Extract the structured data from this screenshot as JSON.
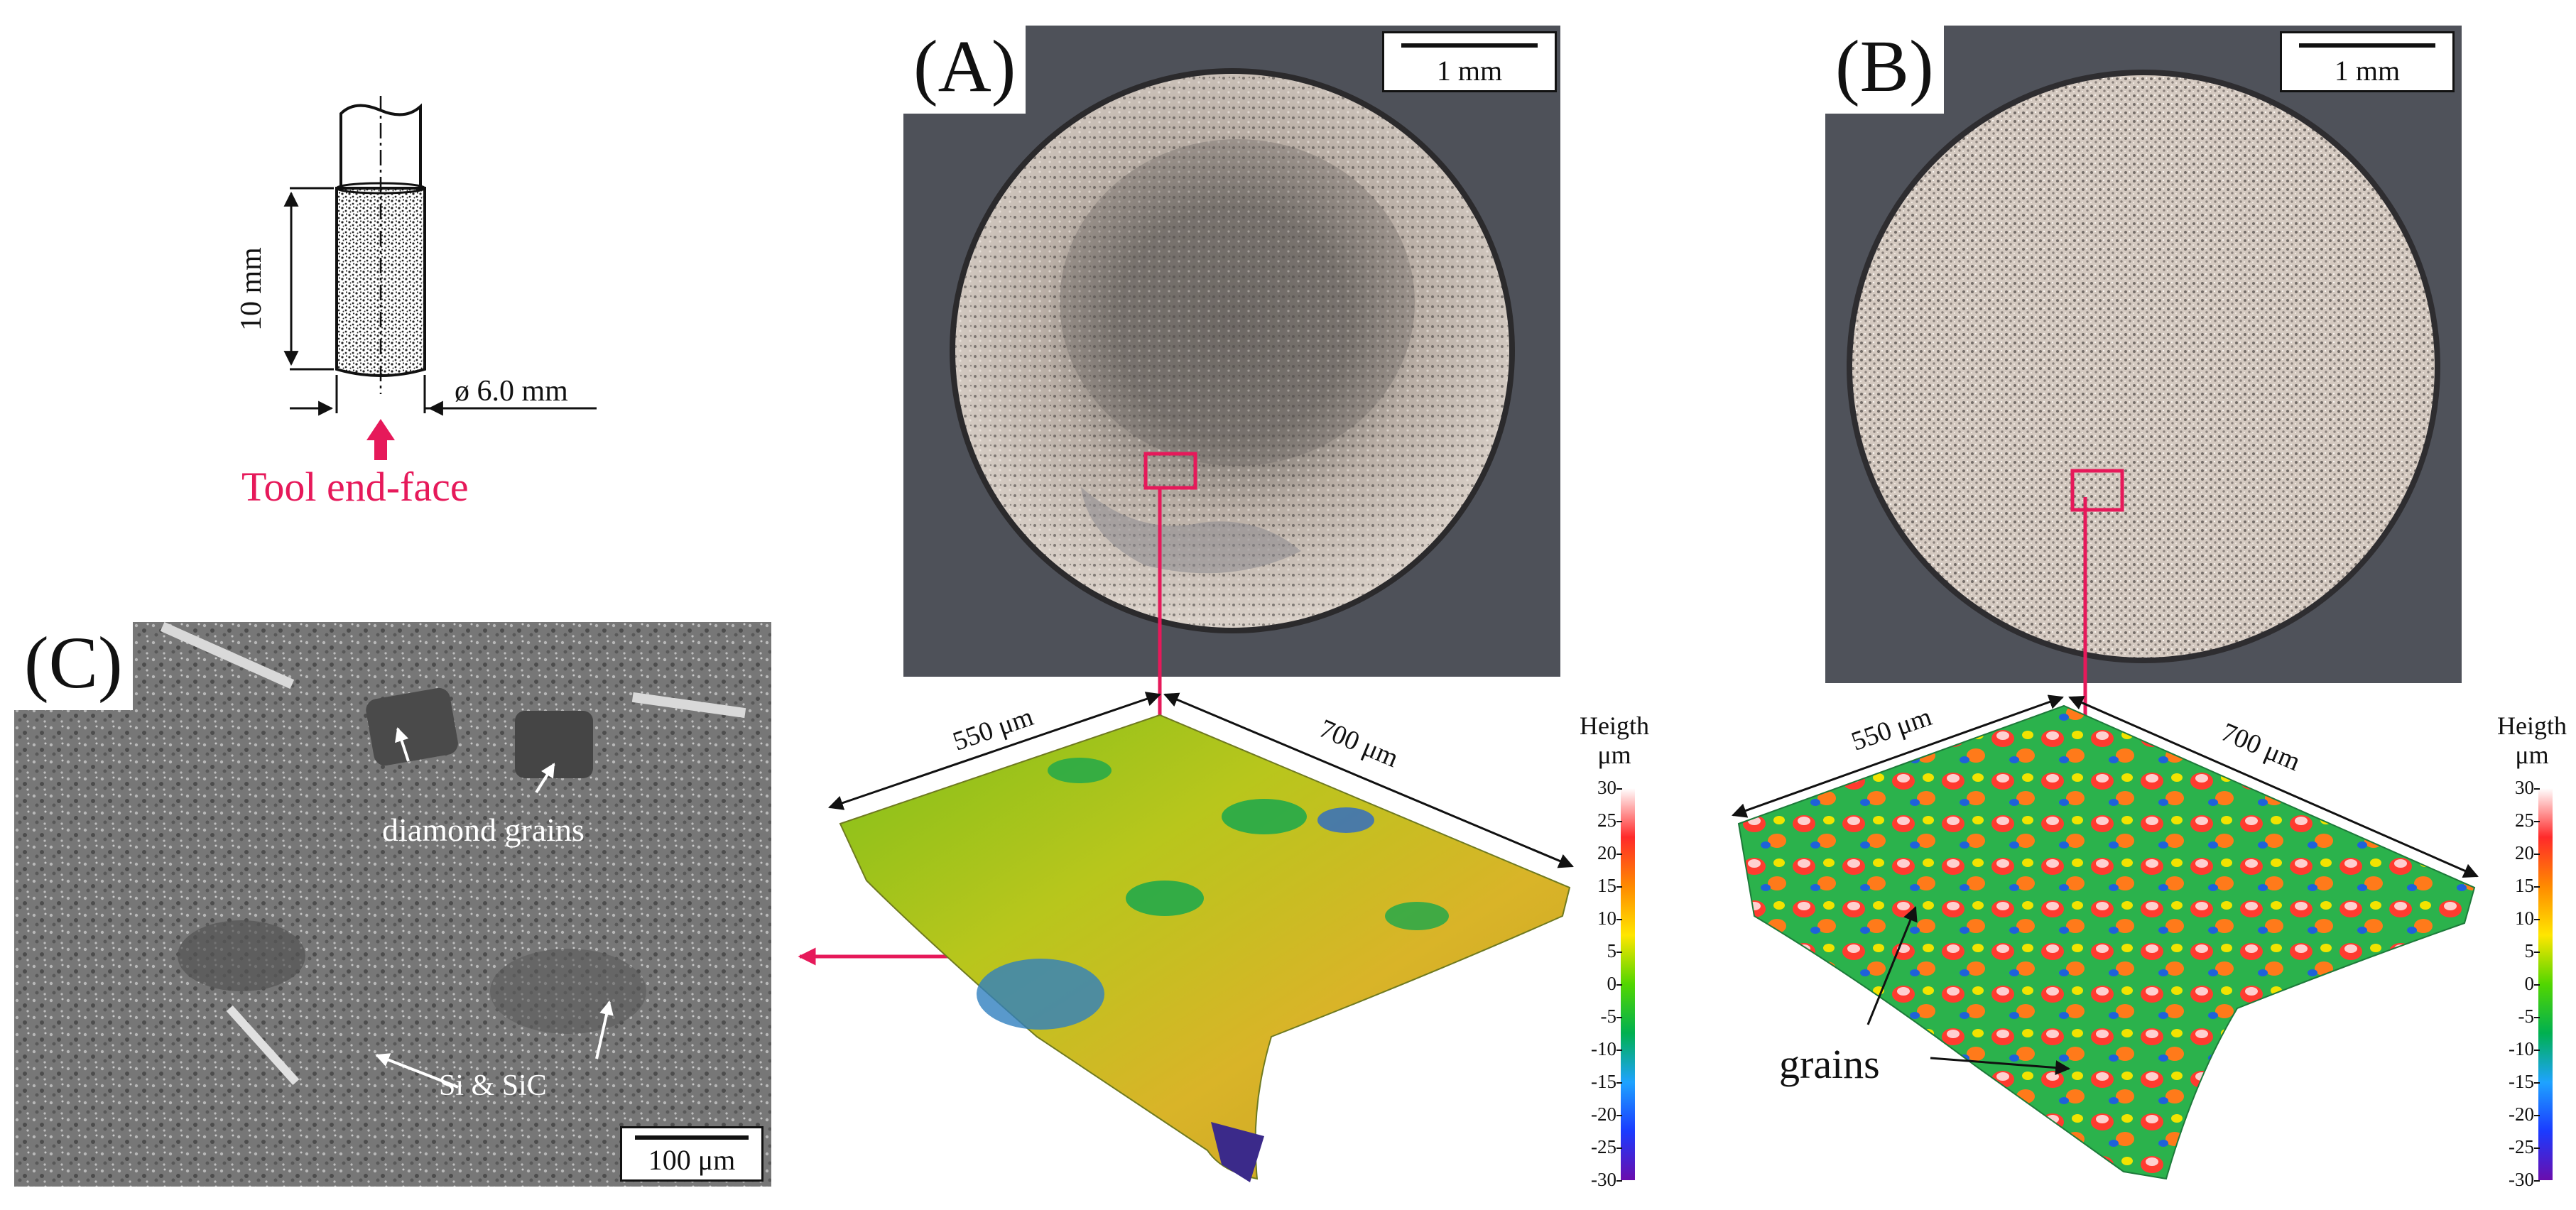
{
  "figure": {
    "tool_sketch": {
      "length_label": "10 mm",
      "diameter_label": "ø 6.0 mm",
      "end_face_label": "Tool end-face"
    },
    "panel_a": {
      "letter": "(A)",
      "scale_label": "1 mm",
      "dim_x": "550 μm",
      "dim_y": "700 μm"
    },
    "panel_b": {
      "letter": "(B)",
      "scale_label": "1 mm",
      "dim_x": "550 μm",
      "dim_y": "700 μm",
      "grains_label": "grains"
    },
    "panel_c": {
      "letter": "(C)",
      "scale_label": "100 μm",
      "diamond_label": "diamond  grains",
      "matrix_label": "Si & SiC"
    },
    "colorbar": {
      "title_line1": "Heigth",
      "title_line2": "μm",
      "ticks": [
        "30",
        "25",
        "20",
        "15",
        "10",
        "5",
        "0",
        "-5",
        "-10",
        "-15",
        "-20",
        "-25",
        "-30"
      ],
      "colors": [
        "#ffffff",
        "#ff2a2a",
        "#ff8a00",
        "#ffe600",
        "#52d600",
        "#00b050",
        "#1ea3ff",
        "#1b3bff",
        "#6a0dad"
      ]
    },
    "colors": {
      "accent": "#e6195a",
      "photo_bg": "#4e5159",
      "sem_bg": "#7c7c7c"
    }
  }
}
